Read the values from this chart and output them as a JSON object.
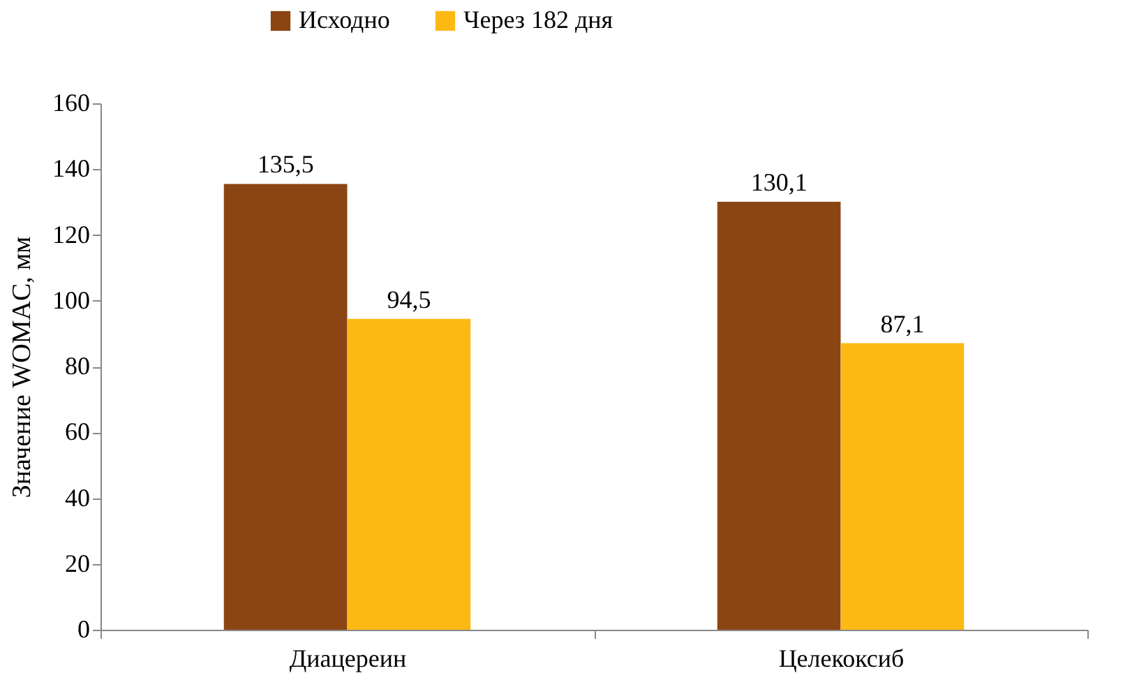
{
  "chart_data": {
    "type": "bar",
    "ylabel": "Значение WOMAC, мм",
    "categories": [
      "Диацереин",
      "Целекоксиб"
    ],
    "series": [
      {
        "name": "Исходно",
        "color": "#8b4513",
        "values": [
          135.5,
          130.1
        ],
        "value_labels": [
          "135,5",
          "130,1"
        ]
      },
      {
        "name": "Через 182 дня",
        "color": "#fdb913",
        "values": [
          94.5,
          87.1
        ],
        "value_labels": [
          "94,5",
          "87,1"
        ]
      }
    ],
    "ylim": [
      0,
      160
    ],
    "yticks": [
      0,
      20,
      40,
      60,
      80,
      100,
      120,
      140,
      160
    ],
    "grid": false,
    "legend": "top"
  }
}
